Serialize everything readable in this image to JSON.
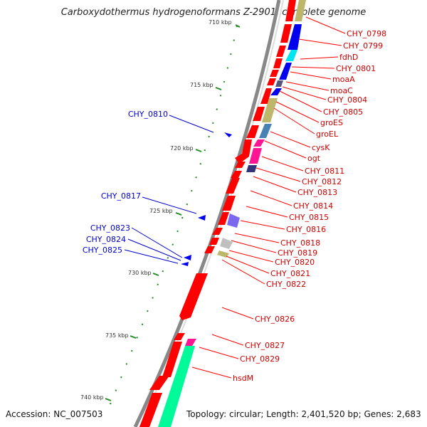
{
  "title": "Carboxydothermus hydrogenoformans Z-2901, complete genome",
  "footer": {
    "accession": "Accession: NC_007503",
    "summary": "Topology: circular; Length: 2,401,520 bp; Genes: 2,683"
  },
  "colors": {
    "cds": "#ff0000",
    "right_label": "#cc0000",
    "left_label": "#0000cc",
    "tick": "#228B22",
    "backbone": "#888888"
  },
  "ticks": [
    "710 kbp",
    "715 kbp",
    "720 kbp",
    "725 kbp",
    "730 kbp",
    "735 kbp",
    "740 kbp"
  ],
  "right_labels": [
    "CHY_0798",
    "CHY_0799",
    "fdhD",
    "CHY_0801",
    "moaA",
    "moaC",
    "CHY_0804",
    "CHY_0805",
    "groES",
    "groEL",
    "cysK",
    "ogt",
    "CHY_0811",
    "CHY_0812",
    "CHY_0813",
    "CHY_0814",
    "CHY_0815",
    "CHY_0816",
    "CHY_0818",
    "CHY_0819",
    "CHY_0820",
    "CHY_0821",
    "CHY_0822",
    "CHY_0826",
    "CHY_0827",
    "CHY_0829",
    "hsdM"
  ],
  "left_labels": [
    "CHY_0810",
    "CHY_0817",
    "CHY_0823",
    "CHY_0824",
    "CHY_0825"
  ]
}
